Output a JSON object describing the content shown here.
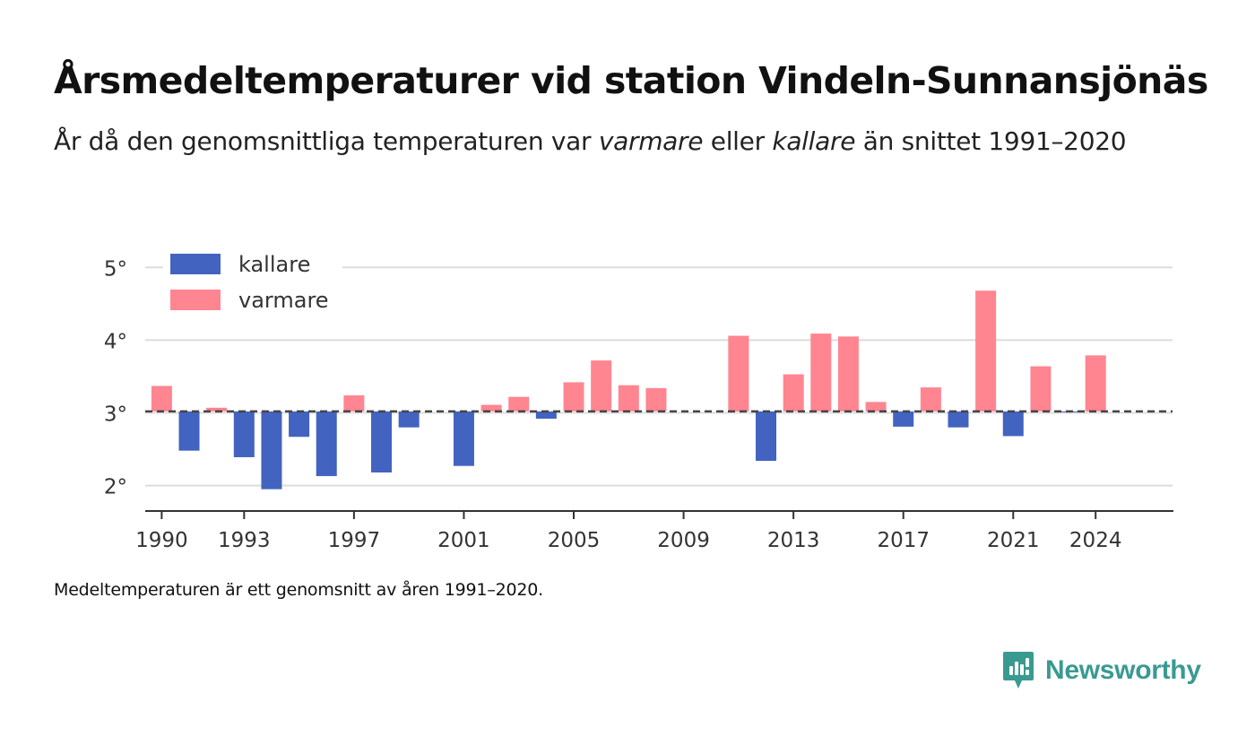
{
  "header": {
    "title": "Årsmedeltemperaturer vid station Vindeln-Sunnansjönäs",
    "subtitle_part1": "År då den genomsnittliga temperaturen var ",
    "subtitle_em1": "varmare",
    "subtitle_part2": " eller ",
    "subtitle_em2": "kallare",
    "subtitle_part3": " än snittet 1991–2020"
  },
  "footer": {
    "note": "Medeltemperaturen är ett genomsnitt av åren 1991–2020.",
    "brand": "Newsworthy"
  },
  "colors": {
    "colder": "#4363c0",
    "warmer": "#ff8591",
    "brand": "#3a9a92",
    "baseline": "#444444"
  },
  "chart_data": {
    "type": "bar",
    "baseline": 3.02,
    "ylim": [
      1.65,
      5.25
    ],
    "yticks": [
      2,
      3,
      4,
      5
    ],
    "ytick_labels": [
      "2°",
      "3°",
      "4°",
      "5°"
    ],
    "xlim": [
      1989.4,
      2026.8
    ],
    "xticks": [
      1990,
      1993,
      1997,
      2001,
      2005,
      2009,
      2013,
      2017,
      2021,
      2024
    ],
    "xtick_labels": [
      "1990",
      "1993",
      "1997",
      "2001",
      "2005",
      "2009",
      "2013",
      "2017",
      "2021",
      "2024"
    ],
    "legend": [
      {
        "key": "colder",
        "label": "kallare"
      },
      {
        "key": "warmer",
        "label": "varmare"
      }
    ],
    "legend_position": "top-left",
    "grid": true,
    "x": [
      1990,
      1991,
      1992,
      1993,
      1994,
      1995,
      1996,
      1997,
      1998,
      1999,
      2001,
      2002,
      2003,
      2004,
      2005,
      2006,
      2007,
      2008,
      2011,
      2012,
      2013,
      2014,
      2015,
      2016,
      2017,
      2018,
      2019,
      2020,
      2021,
      2022,
      2023,
      2024
    ],
    "values": [
      3.37,
      2.48,
      3.07,
      2.39,
      1.95,
      2.67,
      2.13,
      3.24,
      2.18,
      2.8,
      2.27,
      3.11,
      3.22,
      2.92,
      3.42,
      3.72,
      3.38,
      3.34,
      4.06,
      2.34,
      3.53,
      4.09,
      4.05,
      3.15,
      2.81,
      3.35,
      2.8,
      4.68,
      2.68,
      3.64,
      3.01,
      3.79
    ]
  }
}
